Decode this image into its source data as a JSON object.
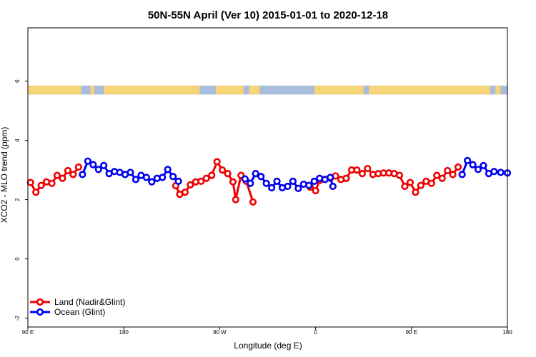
{
  "chart_data": {
    "type": "line",
    "title": "50N-55N April (Ver 10)   2015-01-01 to 2020-12-18",
    "xlabel": "Longitude (deg E)",
    "ylabel": "XCO2 - MLO trend (ppm)",
    "xlim": [
      90,
      450
    ],
    "ylim": [
      -2.3,
      7.8
    ],
    "x_ticks": [
      {
        "value": 90,
        "label": "90 E"
      },
      {
        "value": 162,
        "label": "180"
      },
      {
        "value": 234,
        "label": "90 W"
      },
      {
        "value": 306,
        "label": "0"
      },
      {
        "value": 378,
        "label": "90 E"
      },
      {
        "value": 450,
        "label": "180"
      }
    ],
    "y_ticks": [
      {
        "value": -2,
        "label": "-2"
      },
      {
        "value": 0,
        "label": "0"
      },
      {
        "value": 2,
        "label": "2"
      },
      {
        "value": 4,
        "label": "4"
      },
      {
        "value": 6,
        "label": "6"
      }
    ],
    "legend_position": "bottom-left",
    "land_ocean_strip": {
      "y_range": [
        5.55,
        5.85
      ],
      "land_color": "#f5d47a",
      "ocean_color": "#a8bcdc",
      "land_segments": [
        [
          90,
          130
        ],
        [
          137,
          140
        ],
        [
          147,
          219
        ],
        [
          231,
          252
        ],
        [
          256,
          264
        ],
        [
          305,
          342
        ],
        [
          346,
          437
        ],
        [
          441,
          445
        ]
      ]
    },
    "series": [
      {
        "name": "Land (Nadir&Glint)",
        "color": "#ee0000",
        "segments": [
          [
            [
              92,
              2.58
            ],
            [
              96,
              2.25
            ],
            [
              100,
              2.48
            ],
            [
              104,
              2.6
            ],
            [
              108,
              2.55
            ],
            [
              112,
              2.82
            ],
            [
              116,
              2.72
            ],
            [
              120,
              2.98
            ],
            [
              124,
              2.85
            ],
            [
              128,
              3.1
            ]
          ],
          [
            [
              201,
              2.47
            ],
            [
              204,
              2.18
            ],
            [
              208,
              2.25
            ],
            [
              212,
              2.5
            ],
            [
              216,
              2.6
            ],
            [
              220,
              2.62
            ],
            [
              224,
              2.72
            ],
            [
              228,
              2.82
            ],
            [
              232,
              3.28
            ],
            [
              236,
              3.0
            ],
            [
              240,
              2.88
            ],
            [
              244,
              2.6
            ],
            [
              246,
              2.0
            ],
            [
              250,
              2.82
            ],
            [
              254,
              2.62
            ],
            [
              259,
              1.92
            ]
          ],
          [
            [
              302,
              2.42
            ],
            [
              306,
              2.3
            ],
            [
              309,
              2.65
            ],
            [
              313,
              2.68
            ],
            [
              317,
              2.72
            ],
            [
              321,
              2.8
            ],
            [
              325,
              2.68
            ],
            [
              329,
              2.72
            ],
            [
              333,
              3.0
            ],
            [
              337,
              3.0
            ],
            [
              341,
              2.88
            ],
            [
              345,
              3.05
            ],
            [
              349,
              2.85
            ],
            [
              353,
              2.88
            ],
            [
              357,
              2.9
            ],
            [
              361,
              2.9
            ],
            [
              365,
              2.88
            ],
            [
              369,
              2.82
            ],
            [
              373,
              2.45
            ],
            [
              377,
              2.58
            ],
            [
              381,
              2.25
            ],
            [
              385,
              2.48
            ],
            [
              389,
              2.62
            ],
            [
              393,
              2.55
            ],
            [
              397,
              2.82
            ],
            [
              401,
              2.72
            ],
            [
              405,
              2.98
            ],
            [
              409,
              2.85
            ],
            [
              413,
              3.1
            ]
          ]
        ]
      },
      {
        "name": "Ocean (Glint)",
        "color": "#0000ee",
        "segments": [
          [
            [
              131,
              2.85
            ],
            [
              135,
              3.3
            ],
            [
              139,
              3.18
            ],
            [
              143,
              3.02
            ],
            [
              147,
              3.15
            ],
            [
              151,
              2.88
            ],
            [
              155,
              2.95
            ],
            [
              159,
              2.92
            ],
            [
              163,
              2.85
            ],
            [
              167,
              2.92
            ],
            [
              171,
              2.68
            ],
            [
              175,
              2.82
            ],
            [
              179,
              2.75
            ],
            [
              183,
              2.6
            ],
            [
              187,
              2.72
            ],
            [
              191,
              2.75
            ],
            [
              195,
              3.02
            ],
            [
              199,
              2.78
            ],
            [
              203,
              2.62
            ]
          ],
          [
            [
              253,
              2.7
            ],
            [
              257,
              2.55
            ],
            [
              261,
              2.88
            ],
            [
              265,
              2.78
            ],
            [
              269,
              2.55
            ],
            [
              273,
              2.4
            ],
            [
              277,
              2.62
            ],
            [
              281,
              2.4
            ],
            [
              285,
              2.45
            ],
            [
              289,
              2.62
            ],
            [
              293,
              2.38
            ],
            [
              297,
              2.52
            ],
            [
              301,
              2.48
            ],
            [
              305,
              2.62
            ],
            [
              309,
              2.72
            ],
            [
              313,
              2.68
            ],
            [
              317,
              2.75
            ],
            [
              319,
              2.45
            ]
          ],
          [
            [
              416,
              2.85
            ],
            [
              420,
              3.32
            ],
            [
              424,
              3.18
            ],
            [
              428,
              3.02
            ],
            [
              432,
              3.15
            ],
            [
              436,
              2.88
            ],
            [
              440,
              2.95
            ],
            [
              445,
              2.92
            ],
            [
              450,
              2.9
            ]
          ]
        ]
      }
    ]
  }
}
